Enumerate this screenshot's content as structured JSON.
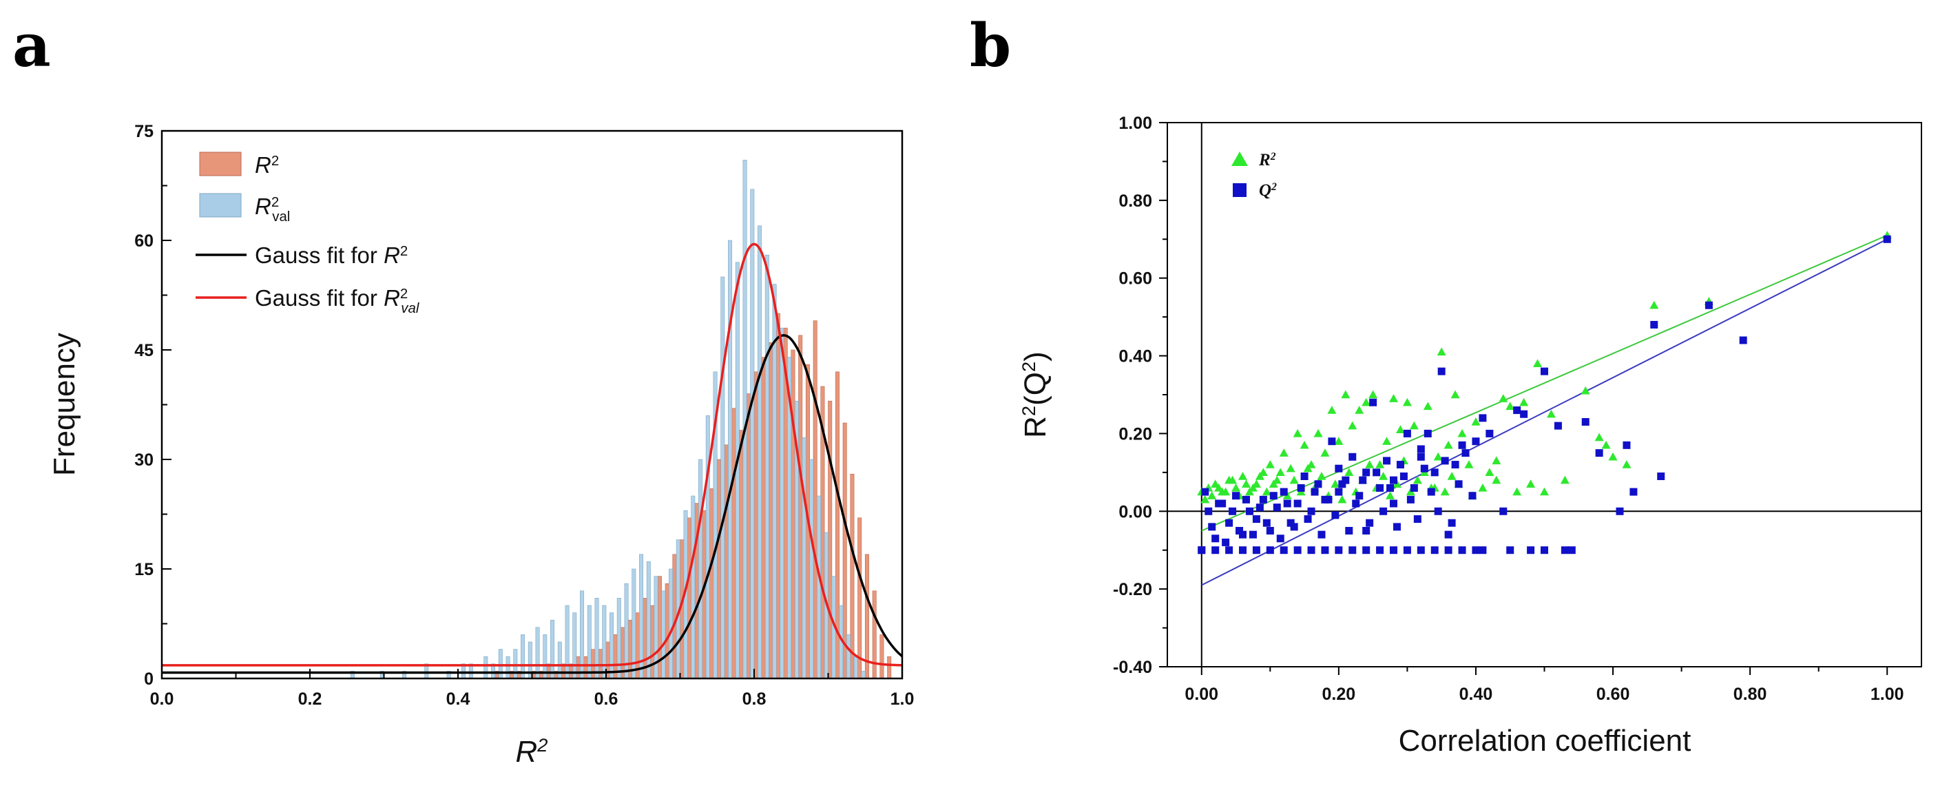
{
  "figure": {
    "panel_a_label": "a",
    "panel_b_label": "b"
  },
  "chart_data": [
    {
      "type": "bar",
      "subtype": "histogram with gaussian fits",
      "xlabel": "R2",
      "ylabel": "Frequency",
      "xlim": [
        0.0,
        1.0
      ],
      "ylim": [
        0,
        75
      ],
      "xticks": [
        "0.0",
        "0.2",
        "0.4",
        "0.6",
        "0.8",
        "1.0"
      ],
      "yticks": [
        "0",
        "15",
        "30",
        "45",
        "60",
        "75"
      ],
      "legend_position": "top-left",
      "legend": [
        {
          "label": "R",
          "sup": "2",
          "sub": "",
          "kind": "bar"
        },
        {
          "label": "R",
          "sup": "2",
          "sub": "val",
          "kind": "bar"
        },
        {
          "label": "Gauss fit for R",
          "sup": "2",
          "sub": "",
          "kind": "line"
        },
        {
          "label": "Gauss fit for R",
          "sup": "2",
          "sub": "val",
          "kind": "line"
        }
      ],
      "colors": {
        "r2": "#e8967a",
        "r2val": "#a9cde6",
        "fit_r2": "#000000",
        "fit_r2val": "#e8201e"
      },
      "bin_width": 0.01,
      "series": [
        {
          "name": "R2",
          "x": [
            0.45,
            0.46,
            0.47,
            0.48,
            0.49,
            0.5,
            0.51,
            0.52,
            0.53,
            0.54,
            0.55,
            0.56,
            0.57,
            0.58,
            0.59,
            0.6,
            0.61,
            0.62,
            0.63,
            0.64,
            0.65,
            0.66,
            0.67,
            0.68,
            0.69,
            0.7,
            0.71,
            0.72,
            0.73,
            0.74,
            0.75,
            0.76,
            0.77,
            0.78,
            0.79,
            0.8,
            0.81,
            0.82,
            0.83,
            0.84,
            0.85,
            0.86,
            0.87,
            0.88,
            0.89,
            0.9,
            0.91,
            0.92,
            0.93,
            0.94,
            0.95,
            0.96,
            0.97,
            0.98
          ],
          "values": [
            1,
            0,
            1,
            1,
            0,
            1,
            1,
            2,
            1,
            2,
            2,
            3,
            3,
            4,
            4,
            5,
            6,
            7,
            8,
            9,
            11,
            10,
            14,
            13,
            17,
            19,
            22,
            24,
            23,
            26,
            30,
            32,
            37,
            34,
            39,
            42,
            44,
            46,
            50,
            48,
            45,
            47,
            43,
            49,
            40,
            38,
            42,
            35,
            28,
            22,
            17,
            12,
            6,
            3
          ]
        },
        {
          "name": "R2val",
          "x": [
            0.26,
            0.3,
            0.33,
            0.36,
            0.39,
            0.41,
            0.42,
            0.44,
            0.45,
            0.46,
            0.47,
            0.48,
            0.49,
            0.5,
            0.51,
            0.52,
            0.53,
            0.54,
            0.55,
            0.56,
            0.57,
            0.58,
            0.59,
            0.6,
            0.61,
            0.62,
            0.63,
            0.64,
            0.65,
            0.66,
            0.67,
            0.68,
            0.69,
            0.7,
            0.71,
            0.72,
            0.73,
            0.74,
            0.75,
            0.76,
            0.77,
            0.78,
            0.79,
            0.8,
            0.81,
            0.82,
            0.83,
            0.84,
            0.85,
            0.86,
            0.87,
            0.88,
            0.89,
            0.9,
            0.91,
            0.92,
            0.93,
            0.94,
            0.95
          ],
          "values": [
            1,
            1,
            1,
            2,
            1,
            2,
            2,
            3,
            2,
            4,
            3,
            4,
            6,
            5,
            7,
            6,
            8,
            5,
            10,
            9,
            12,
            10,
            11,
            10,
            9,
            11,
            13,
            15,
            17,
            16,
            14,
            12,
            15,
            19,
            23,
            25,
            30,
            36,
            42,
            55,
            60,
            57,
            71,
            67,
            62,
            58,
            54,
            48,
            44,
            38,
            33,
            30,
            25,
            20,
            14,
            10,
            6,
            3,
            1
          ]
        },
        {
          "name": "Gauss fit for R2",
          "type": "gaussian",
          "baseline": 0.8,
          "peak": 47,
          "center": 0.84,
          "sigma": 0.065
        },
        {
          "name": "Gauss fit for R2val",
          "type": "gaussian",
          "baseline": 1.8,
          "peak": 59.5,
          "center": 0.8,
          "sigma": 0.05
        }
      ]
    },
    {
      "type": "scatter",
      "xlabel": "Correlation coefficient",
      "ylabel": "R2(Q2)",
      "xlim": [
        -0.05,
        1.05
      ],
      "ylim": [
        -0.4,
        1.0
      ],
      "xticks": [
        "0.00",
        "0.20",
        "0.40",
        "0.60",
        "0.80",
        "1.00"
      ],
      "yticks": [
        "-0.40",
        "-0.20",
        "0.00",
        "0.20",
        "0.40",
        "0.60",
        "0.80",
        "1.00"
      ],
      "legend_position": "top-left",
      "legend": [
        {
          "label": "R",
          "sup": "2",
          "marker": "triangle"
        },
        {
          "label": "Q",
          "sup": "2",
          "marker": "square"
        }
      ],
      "colors": {
        "r2": "#2ee82e",
        "q2": "#1010c8",
        "fit_r2": "#3cc83c",
        "fit_q2": "#3a3ac0",
        "zero_line": "#000000"
      },
      "series": [
        {
          "name": "R2",
          "marker": "triangle",
          "x": [
            1.0,
            0.74,
            0.66,
            0.56,
            0.58,
            0.59,
            0.6,
            0.62,
            0.5,
            0.49,
            0.45,
            0.47,
            0.4,
            0.42,
            0.43,
            0.44,
            0.35,
            0.36,
            0.37,
            0.38,
            0.39,
            0.33,
            0.31,
            0.3,
            0.34,
            0.28,
            0.29,
            0.27,
            0.25,
            0.26,
            0.24,
            0.23,
            0.22,
            0.21,
            0.2,
            0.19,
            0.18,
            0.17,
            0.16,
            0.15,
            0.14,
            0.13,
            0.12,
            0.11,
            0.1,
            0.09,
            0.08,
            0.07,
            0.06,
            0.05,
            0.04,
            0.03,
            0.02,
            0.01,
            0.0,
            0.005,
            0.015,
            0.025,
            0.035,
            0.045,
            0.055,
            0.065,
            0.075,
            0.085,
            0.095,
            0.105,
            0.115,
            0.125,
            0.135,
            0.145,
            0.155,
            0.165,
            0.175,
            0.185,
            0.195,
            0.205,
            0.215,
            0.225,
            0.235,
            0.245,
            0.255,
            0.265,
            0.275,
            0.285,
            0.295,
            0.305,
            0.315,
            0.325,
            0.335,
            0.345,
            0.355,
            0.365,
            0.375,
            0.385,
            0.395,
            0.41,
            0.43,
            0.46,
            0.48,
            0.51,
            0.53
          ],
          "values": [
            0.71,
            0.54,
            0.53,
            0.31,
            0.19,
            0.17,
            0.14,
            0.12,
            0.05,
            0.38,
            0.27,
            0.28,
            0.23,
            0.1,
            0.13,
            0.29,
            0.41,
            0.17,
            0.3,
            0.2,
            0.12,
            0.27,
            0.22,
            0.28,
            0.06,
            0.29,
            0.21,
            0.18,
            0.3,
            0.12,
            0.28,
            0.26,
            0.22,
            0.3,
            0.18,
            0.26,
            0.15,
            0.2,
            0.12,
            0.17,
            0.2,
            0.11,
            0.15,
            0.08,
            0.12,
            0.1,
            0.07,
            0.05,
            0.09,
            0.06,
            0.08,
            0.05,
            0.07,
            0.06,
            0.05,
            0.03,
            0.04,
            0.06,
            0.05,
            0.08,
            0.04,
            0.07,
            0.06,
            0.09,
            0.05,
            0.07,
            0.1,
            0.04,
            0.08,
            0.05,
            0.11,
            0.06,
            0.09,
            0.04,
            0.07,
            0.03,
            0.1,
            0.05,
            0.08,
            0.12,
            0.06,
            0.09,
            0.04,
            0.07,
            0.13,
            0.05,
            0.08,
            0.1,
            0.06,
            0.14,
            0.05,
            0.09,
            0.07,
            0.15,
            0.04,
            0.06,
            0.08,
            0.05,
            0.07,
            0.25,
            0.08
          ]
        },
        {
          "name": "Q2",
          "marker": "square",
          "x": [
            1.0,
            0.79,
            0.74,
            0.67,
            0.66,
            0.63,
            0.62,
            0.61,
            0.58,
            0.56,
            0.52,
            0.5,
            0.47,
            0.46,
            0.42,
            0.41,
            0.4,
            0.38,
            0.37,
            0.35,
            0.34,
            0.33,
            0.32,
            0.31,
            0.3,
            0.29,
            0.28,
            0.27,
            0.26,
            0.25,
            0.24,
            0.23,
            0.22,
            0.21,
            0.2,
            0.19,
            0.18,
            0.17,
            0.16,
            0.15,
            0.14,
            0.13,
            0.12,
            0.11,
            0.1,
            0.09,
            0.08,
            0.07,
            0.06,
            0.05,
            0.04,
            0.03,
            0.02,
            0.01,
            0.0,
            0.005,
            0.015,
            0.025,
            0.035,
            0.045,
            0.055,
            0.065,
            0.075,
            0.085,
            0.095,
            0.105,
            0.115,
            0.125,
            0.135,
            0.145,
            0.155,
            0.165,
            0.175,
            0.185,
            0.195,
            0.205,
            0.215,
            0.225,
            0.235,
            0.245,
            0.255,
            0.265,
            0.275,
            0.285,
            0.295,
            0.305,
            0.315,
            0.325,
            0.335,
            0.345,
            0.355,
            0.365,
            0.375,
            0.385,
            0.395,
            0.36,
            0.32,
            0.28,
            0.24,
            0.2,
            0.44,
            0.48,
            0.54,
            0.45,
            0.5,
            0.53,
            0.0,
            0.02,
            0.04,
            0.06,
            0.08,
            0.1,
            0.12,
            0.14,
            0.16,
            0.18,
            0.2,
            0.22,
            0.24,
            0.26,
            0.28,
            0.3,
            0.32,
            0.34,
            0.36,
            0.38,
            0.4,
            0.41
          ],
          "values": [
            0.7,
            0.44,
            0.53,
            0.09,
            0.48,
            0.05,
            0.17,
            0.0,
            0.15,
            0.23,
            0.22,
            0.36,
            0.25,
            0.26,
            0.2,
            0.24,
            0.18,
            0.17,
            0.12,
            0.36,
            0.1,
            0.2,
            0.14,
            0.06,
            0.2,
            0.12,
            0.08,
            0.13,
            0.06,
            0.28,
            0.1,
            0.04,
            0.14,
            0.08,
            0.05,
            0.18,
            0.03,
            0.07,
            0.0,
            0.09,
            0.02,
            -0.03,
            0.05,
            0.01,
            -0.05,
            0.03,
            -0.02,
            0.0,
            -0.06,
            0.04,
            -0.03,
            0.02,
            -0.07,
            0.0,
            -0.1,
            0.05,
            -0.04,
            0.02,
            -0.08,
            0.0,
            -0.05,
            0.03,
            -0.06,
            0.01,
            -0.03,
            0.04,
            -0.07,
            0.02,
            -0.04,
            0.06,
            -0.02,
            0.05,
            -0.06,
            0.03,
            -0.01,
            0.07,
            -0.05,
            0.02,
            0.08,
            -0.03,
            0.1,
            0.0,
            0.06,
            -0.04,
            0.09,
            0.03,
            -0.02,
            0.11,
            0.05,
            0.0,
            0.13,
            -0.03,
            0.07,
            0.15,
            0.04,
            -0.06,
            0.16,
            0.02,
            -0.05,
            0.11,
            0.0,
            -0.1,
            -0.1,
            -0.1,
            -0.1,
            -0.1,
            -0.1,
            -0.1,
            -0.1,
            -0.1,
            -0.1,
            -0.1,
            -0.1,
            -0.1,
            -0.1,
            -0.1,
            -0.1,
            -0.1,
            -0.1,
            -0.1,
            -0.1,
            -0.1,
            -0.1,
            -0.1,
            -0.1,
            -0.1,
            -0.1,
            -0.1
          ]
        },
        {
          "name": "R2 fit",
          "type": "line",
          "x": [
            0.0,
            1.0
          ],
          "values": [
            -0.05,
            0.71
          ]
        },
        {
          "name": "Q2 fit",
          "type": "line",
          "x": [
            0.0,
            1.0
          ],
          "values": [
            -0.19,
            0.7
          ]
        }
      ]
    }
  ]
}
